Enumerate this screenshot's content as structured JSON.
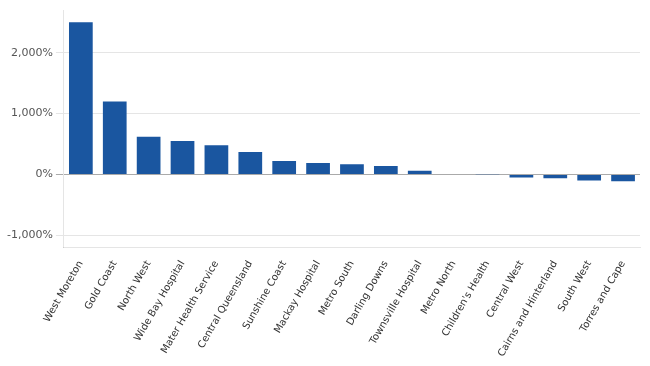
{
  "chart_data": {
    "type": "bar",
    "categories": [
      "West Moreton",
      "Gold Coast",
      "North West",
      "Wide Bay Hospital",
      "Mater Health Service",
      "Central Queensland",
      "Sunshine Coast",
      "Mackay Hospital",
      "Metro South",
      "Darling Downs",
      "Townsville Hospital",
      "Metro North",
      "Children's Health",
      "Central West",
      "Cairns and Hinterland",
      "South West",
      "Torres and Cape"
    ],
    "values": [
      2500,
      1200,
      620,
      550,
      480,
      370,
      220,
      190,
      170,
      140,
      60,
      10,
      5,
      -50,
      -60,
      -100,
      -110
    ],
    "color": "#1a56a0",
    "ylim": [
      -1200,
      2700
    ],
    "yticks": [
      {
        "value": -1000,
        "label": "-1,000%"
      },
      {
        "value": 0,
        "label": "0%"
      },
      {
        "value": 1000,
        "label": "1,000%"
      },
      {
        "value": 2000,
        "label": "2,000%"
      }
    ],
    "grid": true
  }
}
